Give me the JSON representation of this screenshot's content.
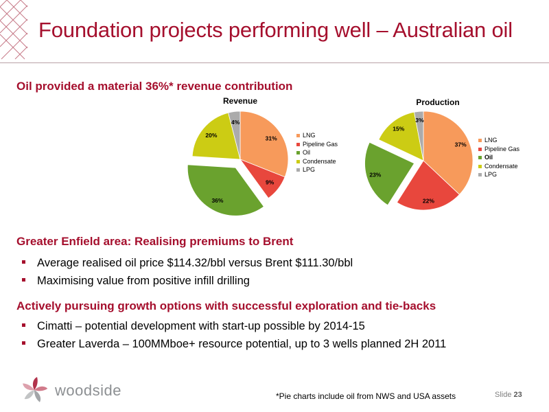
{
  "slide": {
    "title": "Foundation projects performing well – Australian oil",
    "headings": {
      "revenue": "Oil provided a material 36%* revenue contribution",
      "enfield": "Greater Enfield area: Realising premiums to Brent",
      "growth": "Actively pursuing growth options with successful exploration and tie-backs"
    },
    "enfield_bullets": [
      "Average realised oil price $114.32/bbl versus Brent $111.30/bbl",
      "Maximising value from positive infill drilling"
    ],
    "growth_bullets": [
      "Cimatti – potential development with start-up possible by 2014-15",
      "Greater Laverda – 100MMboe+ resource potential, up to 3 wells planned 2H 2011"
    ],
    "footnote": "*Pie charts include oil from NWS and USA assets",
    "slide_label": "Slide",
    "slide_number": "23",
    "logo_text": "woodside"
  },
  "colors": {
    "accent": "#a50f2d",
    "LNG": "#f79a5b",
    "Pipeline Gas": "#e8473d",
    "Oil": "#6aa22e",
    "Condensate": "#cccc14",
    "LPG": "#ababab"
  },
  "chart_data": [
    {
      "type": "pie",
      "title": "Revenue",
      "categories": [
        "LNG",
        "Pipeline Gas",
        "Oil",
        "Condensate",
        "LPG"
      ],
      "values": [
        31,
        9,
        36,
        20,
        4
      ],
      "labels": [
        "31%",
        "9%",
        "36%",
        "20%",
        "4%"
      ],
      "exploded": "Oil",
      "legend_position": "right",
      "legend_bold": []
    },
    {
      "type": "pie",
      "title": "Production",
      "categories": [
        "LNG",
        "Pipeline Gas",
        "Oil",
        "Condensate",
        "LPG"
      ],
      "values": [
        37,
        22,
        23,
        15,
        3
      ],
      "labels": [
        "37%",
        "22%",
        "23%",
        "15%",
        "3%"
      ],
      "exploded": "Oil",
      "legend_position": "right",
      "legend_bold": [
        "Oil"
      ]
    }
  ]
}
